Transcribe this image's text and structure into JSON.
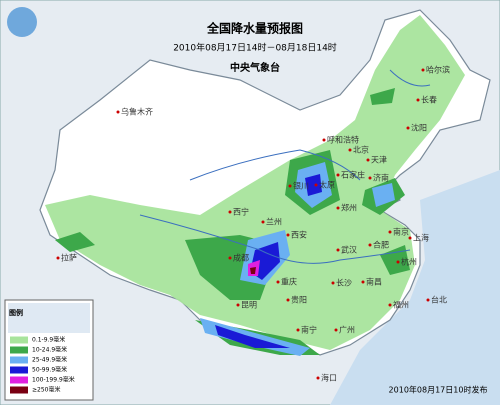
{
  "header": {
    "title": "全国降水量预报图",
    "period": "2010年08月17日14时－08月18日14时",
    "issuer": "中央气象台"
  },
  "legend": {
    "title": "图例",
    "items": [
      {
        "label": "0.1-9.9毫米",
        "color": "#a8e49c"
      },
      {
        "label": "10-24.9毫米",
        "color": "#3da84a"
      },
      {
        "label": "25-49.9毫米",
        "color": "#6ab0f2"
      },
      {
        "label": "50-99.9毫米",
        "color": "#1a1ad6"
      },
      {
        "label": "100-199.9毫米",
        "color": "#e020e0"
      },
      {
        "label": "≥250毫米",
        "color": "#7a0012"
      }
    ]
  },
  "cities": [
    "乌鲁木齐",
    "拉萨",
    "西宁",
    "兰州",
    "银川",
    "呼和浩特",
    "北京",
    "天津",
    "石家庄",
    "太原",
    "济南",
    "郑州",
    "西安",
    "成都",
    "重庆",
    "武汉",
    "合肥",
    "南京",
    "上海",
    "杭州",
    "长沙",
    "南昌",
    "福州",
    "贵阳",
    "昆明",
    "南宁",
    "广州",
    "海口",
    "台北",
    "哈尔滨",
    "长春",
    "沈阳"
  ],
  "footer": "2010年08月17日10时发布"
}
